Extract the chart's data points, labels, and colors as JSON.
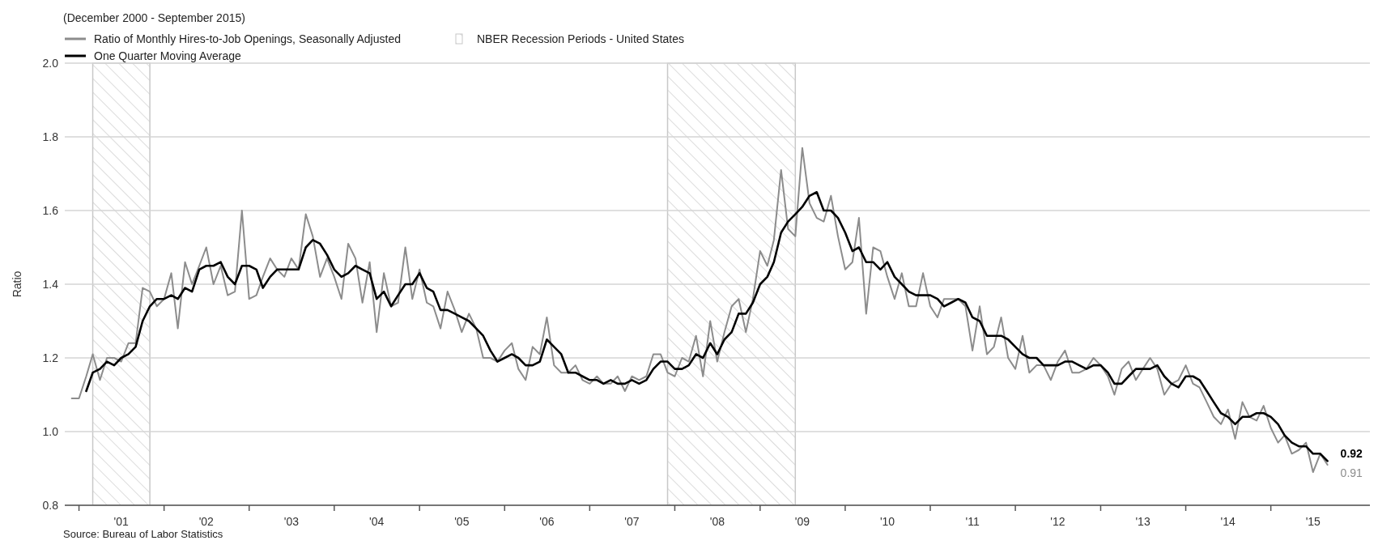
{
  "chart_data": {
    "type": "line",
    "subtitle": "(December 2000 - September 2015)",
    "ylabel": "Ratio",
    "annotations": [
      "Source: Bureau of Labor Statistics"
    ],
    "x": [
      "2000-12",
      "2001-01",
      "2001-02",
      "2001-03",
      "2001-04",
      "2001-05",
      "2001-06",
      "2001-07",
      "2001-08",
      "2001-09",
      "2001-10",
      "2001-11",
      "2001-12",
      "2002-01",
      "2002-02",
      "2002-03",
      "2002-04",
      "2002-05",
      "2002-06",
      "2002-07",
      "2002-08",
      "2002-09",
      "2002-10",
      "2002-11",
      "2002-12",
      "2003-01",
      "2003-02",
      "2003-03",
      "2003-04",
      "2003-05",
      "2003-06",
      "2003-07",
      "2003-08",
      "2003-09",
      "2003-10",
      "2003-11",
      "2003-12",
      "2004-01",
      "2004-02",
      "2004-03",
      "2004-04",
      "2004-05",
      "2004-06",
      "2004-07",
      "2004-08",
      "2004-09",
      "2004-10",
      "2004-11",
      "2004-12",
      "2005-01",
      "2005-02",
      "2005-03",
      "2005-04",
      "2005-05",
      "2005-06",
      "2005-07",
      "2005-08",
      "2005-09",
      "2005-10",
      "2005-11",
      "2005-12",
      "2006-01",
      "2006-02",
      "2006-03",
      "2006-04",
      "2006-05",
      "2006-06",
      "2006-07",
      "2006-08",
      "2006-09",
      "2006-10",
      "2006-11",
      "2006-12",
      "2007-01",
      "2007-02",
      "2007-03",
      "2007-04",
      "2007-05",
      "2007-06",
      "2007-07",
      "2007-08",
      "2007-09",
      "2007-10",
      "2007-11",
      "2007-12",
      "2008-01",
      "2008-02",
      "2008-03",
      "2008-04",
      "2008-05",
      "2008-06",
      "2008-07",
      "2008-08",
      "2008-09",
      "2008-10",
      "2008-11",
      "2008-12",
      "2009-01",
      "2009-02",
      "2009-03",
      "2009-04",
      "2009-05",
      "2009-06",
      "2009-07",
      "2009-08",
      "2009-09",
      "2009-10",
      "2009-11",
      "2009-12",
      "2010-01",
      "2010-02",
      "2010-03",
      "2010-04",
      "2010-05",
      "2010-06",
      "2010-07",
      "2010-08",
      "2010-09",
      "2010-10",
      "2010-11",
      "2010-12",
      "2011-01",
      "2011-02",
      "2011-03",
      "2011-04",
      "2011-05",
      "2011-06",
      "2011-07",
      "2011-08",
      "2011-09",
      "2011-10",
      "2011-11",
      "2011-12",
      "2012-01",
      "2012-02",
      "2012-03",
      "2012-04",
      "2012-05",
      "2012-06",
      "2012-07",
      "2012-08",
      "2012-09",
      "2012-10",
      "2012-11",
      "2012-12",
      "2013-01",
      "2013-02",
      "2013-03",
      "2013-04",
      "2013-05",
      "2013-06",
      "2013-07",
      "2013-08",
      "2013-09",
      "2013-10",
      "2013-11",
      "2013-12",
      "2014-01",
      "2014-02",
      "2014-03",
      "2014-04",
      "2014-05",
      "2014-06",
      "2014-07",
      "2014-08",
      "2014-09",
      "2014-10",
      "2014-11",
      "2014-12",
      "2015-01",
      "2015-02",
      "2015-03",
      "2015-04",
      "2015-05",
      "2015-06",
      "2015-07",
      "2015-08",
      "2015-09"
    ],
    "series": [
      {
        "name": "Ratio of Monthly Hires-to-Job Openings, Seasonally Adjusted",
        "color": "#8c8c8c",
        "values": [
          1.09,
          1.09,
          1.15,
          1.21,
          1.14,
          1.2,
          1.2,
          1.19,
          1.24,
          1.24,
          1.39,
          1.38,
          1.34,
          1.36,
          1.43,
          1.28,
          1.46,
          1.4,
          1.45,
          1.5,
          1.4,
          1.45,
          1.37,
          1.38,
          1.6,
          1.36,
          1.37,
          1.42,
          1.47,
          1.44,
          1.42,
          1.47,
          1.44,
          1.59,
          1.53,
          1.42,
          1.47,
          1.42,
          1.36,
          1.51,
          1.47,
          1.35,
          1.46,
          1.27,
          1.43,
          1.34,
          1.35,
          1.5,
          1.36,
          1.44,
          1.35,
          1.34,
          1.28,
          1.38,
          1.33,
          1.27,
          1.32,
          1.28,
          1.2,
          1.2,
          1.19,
          1.22,
          1.24,
          1.17,
          1.14,
          1.23,
          1.21,
          1.31,
          1.18,
          1.16,
          1.16,
          1.18,
          1.14,
          1.13,
          1.15,
          1.13,
          1.13,
          1.15,
          1.11,
          1.15,
          1.14,
          1.15,
          1.21,
          1.21,
          1.16,
          1.15,
          1.2,
          1.19,
          1.26,
          1.15,
          1.3,
          1.19,
          1.27,
          1.34,
          1.36,
          1.27,
          1.36,
          1.49,
          1.45,
          1.52,
          1.71,
          1.55,
          1.53,
          1.77,
          1.62,
          1.58,
          1.57,
          1.64,
          1.53,
          1.44,
          1.46,
          1.58,
          1.32,
          1.5,
          1.49,
          1.42,
          1.36,
          1.43,
          1.34,
          1.34,
          1.43,
          1.34,
          1.31,
          1.36,
          1.36,
          1.36,
          1.34,
          1.22,
          1.34,
          1.21,
          1.23,
          1.31,
          1.2,
          1.17,
          1.26,
          1.16,
          1.18,
          1.18,
          1.14,
          1.19,
          1.22,
          1.16,
          1.16,
          1.17,
          1.2,
          1.18,
          1.15,
          1.1,
          1.17,
          1.19,
          1.14,
          1.17,
          1.2,
          1.17,
          1.1,
          1.13,
          1.14,
          1.18,
          1.13,
          1.12,
          1.08,
          1.04,
          1.02,
          1.06,
          0.98,
          1.08,
          1.04,
          1.03,
          1.07,
          1.01,
          0.97,
          0.99,
          0.94,
          0.95,
          0.97,
          0.89,
          0.94,
          0.91
        ],
        "value_labels": [
          null,
          null,
          null,
          null,
          null,
          null,
          null,
          null,
          null,
          null,
          null,
          null,
          null,
          null,
          null,
          null,
          null,
          null,
          null,
          null,
          null,
          null,
          null,
          null,
          null,
          null,
          null,
          null,
          null,
          null,
          null,
          null,
          null,
          null,
          null,
          null,
          null,
          null,
          null,
          null,
          null,
          null,
          null,
          null,
          null,
          null,
          null,
          null,
          null,
          null,
          null,
          null,
          null,
          null,
          null,
          null,
          null,
          null,
          null,
          null,
          null,
          null,
          null,
          null,
          null,
          null,
          null,
          null,
          null,
          null,
          null,
          null,
          null,
          null,
          null,
          null,
          null,
          null,
          null,
          null,
          null,
          null,
          null,
          null,
          null,
          null,
          null,
          null,
          null,
          null,
          null,
          null,
          null,
          null,
          null,
          null,
          null,
          null,
          null,
          null,
          null,
          null,
          null,
          null,
          null,
          null,
          null,
          null,
          null,
          null,
          null,
          null,
          null,
          null,
          null,
          null,
          null,
          null,
          null,
          null,
          null,
          null,
          null,
          null,
          null,
          null,
          null,
          null,
          null,
          null,
          null,
          null,
          null,
          null,
          null,
          null,
          null,
          null,
          null,
          null,
          null,
          null,
          null,
          null,
          null,
          null,
          null,
          null,
          null,
          null,
          null,
          null,
          null,
          null,
          null,
          null,
          null,
          null,
          null,
          null,
          null,
          null,
          null,
          null,
          null,
          null,
          null,
          null,
          null,
          null,
          null,
          null,
          null,
          null,
          null,
          null,
          null,
          "0.91"
        ]
      },
      {
        "name": "One Quarter Moving Average",
        "color": "#000000",
        "values": [
          null,
          null,
          1.11,
          1.16,
          1.17,
          1.19,
          1.18,
          1.2,
          1.21,
          1.23,
          1.3,
          1.34,
          1.36,
          1.36,
          1.37,
          1.36,
          1.39,
          1.38,
          1.44,
          1.45,
          1.45,
          1.46,
          1.42,
          1.4,
          1.45,
          1.45,
          1.44,
          1.39,
          1.42,
          1.44,
          1.44,
          1.44,
          1.44,
          1.5,
          1.52,
          1.51,
          1.48,
          1.44,
          1.42,
          1.43,
          1.45,
          1.44,
          1.43,
          1.36,
          1.38,
          1.34,
          1.37,
          1.4,
          1.4,
          1.43,
          1.39,
          1.38,
          1.33,
          1.33,
          1.32,
          1.31,
          1.3,
          1.28,
          1.26,
          1.22,
          1.19,
          1.2,
          1.21,
          1.2,
          1.18,
          1.18,
          1.19,
          1.25,
          1.23,
          1.21,
          1.16,
          1.16,
          1.15,
          1.14,
          1.14,
          1.13,
          1.14,
          1.13,
          1.13,
          1.14,
          1.13,
          1.14,
          1.17,
          1.19,
          1.19,
          1.17,
          1.17,
          1.18,
          1.21,
          1.2,
          1.24,
          1.21,
          1.25,
          1.27,
          1.32,
          1.32,
          1.35,
          1.4,
          1.42,
          1.46,
          1.54,
          1.57,
          1.59,
          1.61,
          1.64,
          1.65,
          1.6,
          1.6,
          1.58,
          1.54,
          1.49,
          1.5,
          1.46,
          1.46,
          1.44,
          1.46,
          1.42,
          1.4,
          1.38,
          1.37,
          1.37,
          1.37,
          1.36,
          1.34,
          1.35,
          1.36,
          1.35,
          1.31,
          1.3,
          1.26,
          1.26,
          1.26,
          1.25,
          1.23,
          1.21,
          1.2,
          1.2,
          1.18,
          1.18,
          1.18,
          1.19,
          1.19,
          1.18,
          1.17,
          1.18,
          1.18,
          1.16,
          1.13,
          1.13,
          1.15,
          1.17,
          1.17,
          1.17,
          1.18,
          1.15,
          1.13,
          1.12,
          1.15,
          1.15,
          1.14,
          1.11,
          1.08,
          1.05,
          1.04,
          1.02,
          1.04,
          1.04,
          1.05,
          1.05,
          1.04,
          1.02,
          0.99,
          0.97,
          0.96,
          0.96,
          0.94,
          0.94,
          0.92
        ],
        "value_labels": [
          null,
          null,
          null,
          null,
          null,
          null,
          null,
          null,
          null,
          null,
          null,
          null,
          null,
          null,
          null,
          null,
          null,
          null,
          null,
          null,
          null,
          null,
          null,
          null,
          null,
          null,
          null,
          null,
          null,
          null,
          null,
          null,
          null,
          null,
          null,
          null,
          null,
          null,
          null,
          null,
          null,
          null,
          null,
          null,
          null,
          null,
          null,
          null,
          null,
          null,
          null,
          null,
          null,
          null,
          null,
          null,
          null,
          null,
          null,
          null,
          null,
          null,
          null,
          null,
          null,
          null,
          null,
          null,
          null,
          null,
          null,
          null,
          null,
          null,
          null,
          null,
          null,
          null,
          null,
          null,
          null,
          null,
          null,
          null,
          null,
          null,
          null,
          null,
          null,
          null,
          null,
          null,
          null,
          null,
          null,
          null,
          null,
          null,
          null,
          null,
          null,
          null,
          null,
          null,
          null,
          null,
          null,
          null,
          null,
          null,
          null,
          null,
          null,
          null,
          null,
          null,
          null,
          null,
          null,
          null,
          null,
          null,
          null,
          null,
          null,
          null,
          null,
          null,
          null,
          null,
          null,
          null,
          null,
          null,
          null,
          null,
          null,
          null,
          null,
          null,
          null,
          null,
          null,
          null,
          null,
          null,
          null,
          null,
          null,
          null,
          null,
          null,
          null,
          null,
          null,
          null,
          null,
          null,
          null,
          null,
          null,
          null,
          null,
          null,
          null,
          null,
          null,
          null,
          null,
          null,
          null,
          null,
          null,
          null,
          null,
          null,
          null,
          "0.92"
        ]
      }
    ],
    "bands": [
      {
        "axis": "x",
        "from": "2001-03",
        "to": "2001-11",
        "label": "NBER Recession Periods - United States",
        "color": "#c8c8c8"
      },
      {
        "axis": "x",
        "from": "2007-12",
        "to": "2009-06",
        "color": "#c8c8c8"
      }
    ],
    "xlim": [
      "2000-11",
      "2016-03"
    ],
    "xticks": [
      {
        "value": "2001-01",
        "label": null
      },
      {
        "value": "2001-07",
        "label": "'01"
      },
      {
        "value": "2002-01",
        "label": null
      },
      {
        "value": "2002-07",
        "label": "'02"
      },
      {
        "value": "2003-01",
        "label": null
      },
      {
        "value": "2003-07",
        "label": "'03"
      },
      {
        "value": "2004-01",
        "label": null
      },
      {
        "value": "2004-07",
        "label": "'04"
      },
      {
        "value": "2005-01",
        "label": null
      },
      {
        "value": "2005-07",
        "label": "'05"
      },
      {
        "value": "2006-01",
        "label": null
      },
      {
        "value": "2006-07",
        "label": "'06"
      },
      {
        "value": "2007-01",
        "label": null
      },
      {
        "value": "2007-07",
        "label": "'07"
      },
      {
        "value": "2008-01",
        "label": null
      },
      {
        "value": "2008-07",
        "label": "'08"
      },
      {
        "value": "2009-01",
        "label": null
      },
      {
        "value": "2009-07",
        "label": "'09"
      },
      {
        "value": "2010-01",
        "label": null
      },
      {
        "value": "2010-07",
        "label": "'10"
      },
      {
        "value": "2011-01",
        "label": null
      },
      {
        "value": "2011-07",
        "label": "'11"
      },
      {
        "value": "2012-01",
        "label": null
      },
      {
        "value": "2012-07",
        "label": "'12"
      },
      {
        "value": "2013-01",
        "label": null
      },
      {
        "value": "2013-07",
        "label": "'13"
      },
      {
        "value": "2014-01",
        "label": null
      },
      {
        "value": "2014-07",
        "label": "'14"
      },
      {
        "value": "2015-01",
        "label": null
      },
      {
        "value": "2015-07",
        "label": "'15"
      }
    ],
    "ylim": [
      0.8,
      2.0
    ],
    "yticks": [
      0.8,
      {
        "value": 1.0,
        "label": "1.0"
      },
      1.2,
      1.4,
      1.6,
      1.8,
      {
        "value": 2.0,
        "label": "2.0"
      }
    ],
    "grid": "y",
    "legend": "top left"
  }
}
